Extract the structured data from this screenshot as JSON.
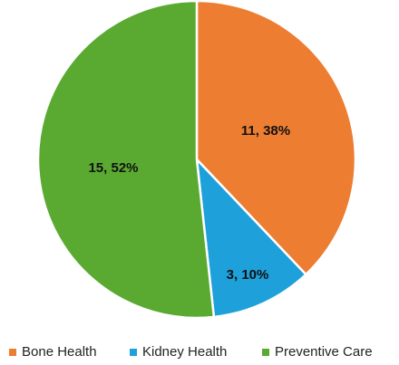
{
  "chart_data": {
    "type": "pie",
    "start_angle_deg": 0,
    "direction": "clockwise",
    "slices": [
      {
        "label": "Bone Health",
        "value": 11,
        "percent": 38,
        "data_label": "11, 38%",
        "color": "#ED7D31"
      },
      {
        "label": "Kidney Health",
        "value": 3,
        "percent": 10,
        "data_label": "3, 10%",
        "color": "#1EA0DA"
      },
      {
        "label": "Preventive Care",
        "value": 15,
        "percent": 52,
        "data_label": "15, 52%",
        "color": "#5AAA32"
      }
    ],
    "legend_position": "bottom"
  }
}
